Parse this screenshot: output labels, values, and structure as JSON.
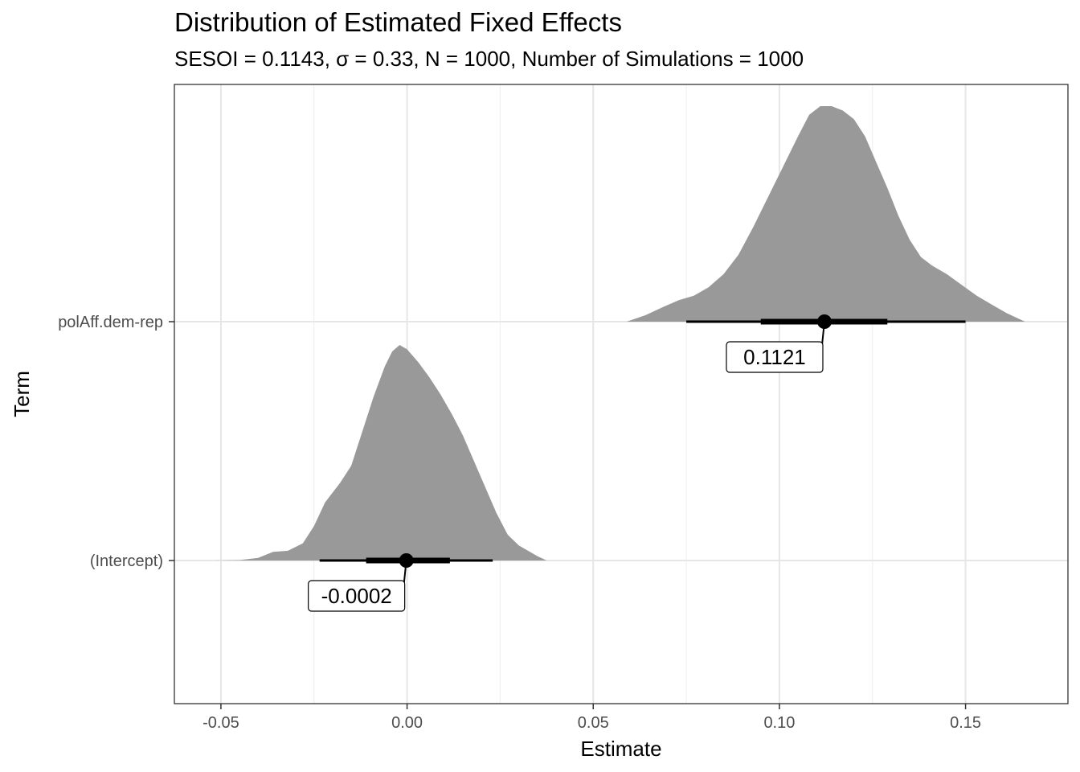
{
  "chart_data": {
    "type": "halfeye",
    "title": "Distribution of Estimated Fixed Effects",
    "subtitle": "SESOI = 0.1143, σ = 0.33, N = 1000, Number of Simulations = 1000",
    "xlabel": "Estimate",
    "ylabel": "Term",
    "xlim": [
      -0.0625,
      0.1775
    ],
    "x_ticks": [
      -0.05,
      0.0,
      0.05,
      0.1,
      0.15
    ],
    "x_tick_labels": [
      "-0.05",
      "0.00",
      "0.05",
      "0.10",
      "0.15"
    ],
    "grid": true,
    "terms": [
      {
        "name": "(Intercept)",
        "point_estimate": -0.0002,
        "label": "-0.0002",
        "interval_66": [
          -0.011,
          0.0115
        ],
        "interval_95": [
          -0.0235,
          0.023
        ],
        "density": [
          [
            -0.052,
            0.0
          ],
          [
            -0.045,
            0.002
          ],
          [
            -0.04,
            0.012
          ],
          [
            -0.036,
            0.04
          ],
          [
            -0.032,
            0.045
          ],
          [
            -0.028,
            0.08
          ],
          [
            -0.025,
            0.16
          ],
          [
            -0.022,
            0.27
          ],
          [
            -0.018,
            0.36
          ],
          [
            -0.015,
            0.44
          ],
          [
            -0.012,
            0.6
          ],
          [
            -0.009,
            0.76
          ],
          [
            -0.006,
            0.9
          ],
          [
            -0.004,
            0.97
          ],
          [
            -0.002,
            1.0
          ],
          [
            0.0,
            0.98
          ],
          [
            0.003,
            0.92
          ],
          [
            0.006,
            0.85
          ],
          [
            0.009,
            0.77
          ],
          [
            0.012,
            0.68
          ],
          [
            0.015,
            0.58
          ],
          [
            0.018,
            0.46
          ],
          [
            0.021,
            0.34
          ],
          [
            0.024,
            0.22
          ],
          [
            0.027,
            0.12
          ],
          [
            0.03,
            0.07
          ],
          [
            0.033,
            0.04
          ],
          [
            0.035,
            0.02
          ],
          [
            0.0375,
            0.0
          ]
        ]
      },
      {
        "name": "polAff.dem-rep",
        "point_estimate": 0.1121,
        "label": "0.1121",
        "interval_66": [
          0.095,
          0.129
        ],
        "interval_95": [
          0.075,
          0.15
        ],
        "density": [
          [
            0.059,
            0.0
          ],
          [
            0.064,
            0.03
          ],
          [
            0.069,
            0.07
          ],
          [
            0.073,
            0.1
          ],
          [
            0.077,
            0.12
          ],
          [
            0.081,
            0.16
          ],
          [
            0.085,
            0.22
          ],
          [
            0.089,
            0.31
          ],
          [
            0.093,
            0.44
          ],
          [
            0.097,
            0.58
          ],
          [
            0.101,
            0.72
          ],
          [
            0.105,
            0.86
          ],
          [
            0.108,
            0.96
          ],
          [
            0.111,
            1.0
          ],
          [
            0.114,
            1.0
          ],
          [
            0.117,
            0.98
          ],
          [
            0.12,
            0.94
          ],
          [
            0.123,
            0.86
          ],
          [
            0.126,
            0.74
          ],
          [
            0.129,
            0.62
          ],
          [
            0.132,
            0.49
          ],
          [
            0.135,
            0.38
          ],
          [
            0.138,
            0.3
          ],
          [
            0.141,
            0.26
          ],
          [
            0.145,
            0.22
          ],
          [
            0.149,
            0.17
          ],
          [
            0.153,
            0.12
          ],
          [
            0.157,
            0.08
          ],
          [
            0.161,
            0.04
          ],
          [
            0.166,
            0.0
          ]
        ]
      }
    ]
  }
}
